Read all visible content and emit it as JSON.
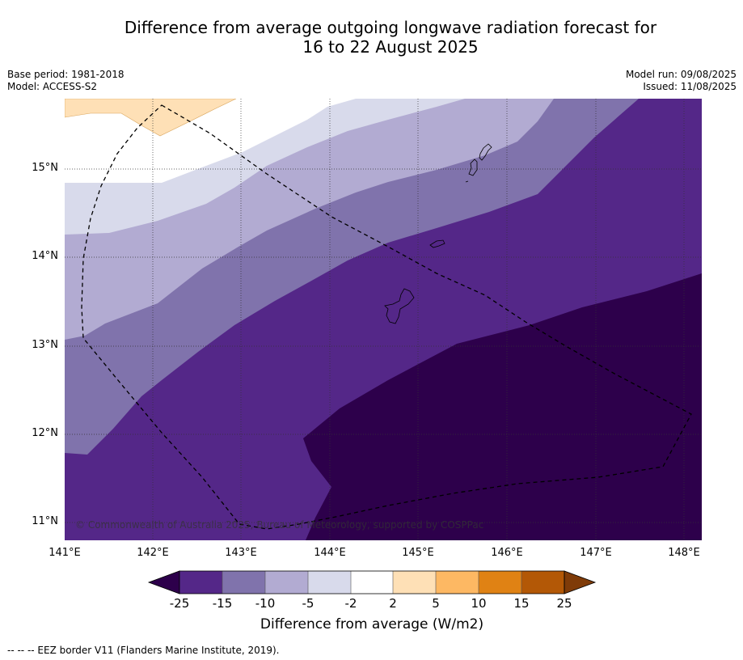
{
  "title_line1": "Difference from average outgoing longwave radiation forecast for",
  "title_line2": "16 to 22 August 2025",
  "base_period": "Base period: 1981-2018",
  "model": "Model: ACCESS-S2",
  "model_run": "Model run: 09/08/2025",
  "issued": "Issued: 11/08/2025",
  "map": {
    "lon_range": [
      141.0,
      148.2
    ],
    "lat_range": [
      10.8,
      15.8
    ],
    "lat_ticks": [
      "15°N",
      "14°N",
      "13°N",
      "12°N",
      "11°N"
    ],
    "lon_ticks": [
      "141°E",
      "142°E",
      "143°E",
      "144°E",
      "145°E",
      "146°E",
      "147°E",
      "148°E"
    ],
    "grid": "dotted",
    "copyright": "© Commonwealth of Australia 2025, Bureau of Meteorology, supported by COSPPac"
  },
  "colorbar": {
    "title": "Difference from average (W/m2)",
    "tick_labels": [
      "-25",
      "-15",
      "-10",
      "-5",
      "-2",
      "2",
      "5",
      "10",
      "15",
      "25"
    ],
    "colors": [
      "#2d004b",
      "#542788",
      "#8073ac",
      "#b2abd2",
      "#d8daeb",
      "#ffffff",
      "#fee0b6",
      "#fdb863",
      "#e08214",
      "#b35806",
      "#7f3b08"
    ],
    "extend": "both"
  },
  "footer": "--  --  -- EEZ border V11 (Flanders Marine Institute, 2019)."
}
